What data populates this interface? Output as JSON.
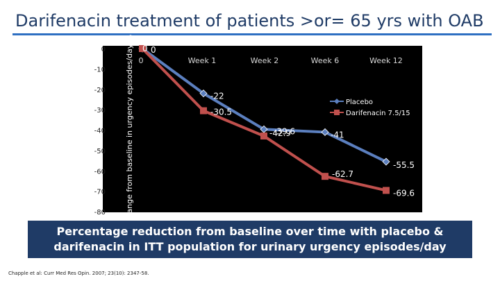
{
  "slide": {
    "title": "Darifenacin treatment of patients >or= 65 yrs with OAB",
    "caption": "Percentage reduction from baseline over time with placebo & darifenacin in ITT population for urinary urgency episodes/day",
    "citation": "Chapple et al: Curr Med Res Opin. 2007; 23(10): 2347-58."
  },
  "chart_data": {
    "type": "line",
    "ylabel": "Change from baseline in urgency episodes/day %",
    "ylim": [
      -80,
      0
    ],
    "yticks": [
      0,
      -10,
      -20,
      -30,
      -40,
      -50,
      -60,
      -70,
      -80
    ],
    "categories": [
      "0",
      "Week 1",
      "Week 2",
      "Week 6",
      "Week 12"
    ],
    "series": [
      {
        "name": "Placebo",
        "values": [
          0,
          -22,
          -39.6,
          -41,
          -55.5
        ],
        "labels": [
          "0",
          "-22",
          "-39.6",
          "-41",
          "-55.5"
        ],
        "color": "#5b7fbf",
        "marker": "diamond"
      },
      {
        "name": "Darifenacin 7.5/15",
        "values": [
          0,
          -30.5,
          -42.9,
          -62.7,
          -69.6
        ],
        "labels": [
          "0",
          "-30.5",
          "-42.9",
          "-62.7",
          "-69.6"
        ],
        "color": "#c0504d",
        "marker": "square"
      }
    ],
    "legend_position": "right",
    "grid": false
  }
}
